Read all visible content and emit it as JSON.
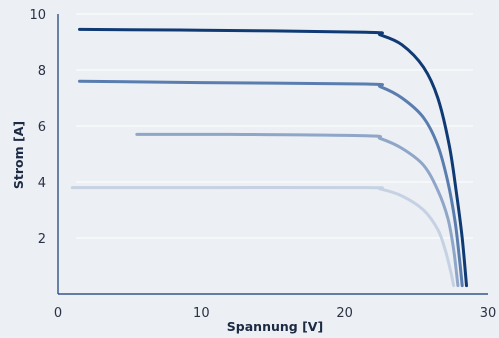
{
  "chart_data": {
    "type": "line",
    "xlabel": "Spannung [V]",
    "ylabel": "Strom [A]",
    "xlim": [
      0,
      30
    ],
    "ylim": [
      0,
      10
    ],
    "x_ticks": [
      0,
      10,
      20,
      30
    ],
    "y_ticks": [
      2,
      4,
      6,
      8,
      10
    ],
    "grid": "horizontal",
    "series": [
      {
        "color": "#0f3a74",
        "points": [
          [
            1.5,
            9.45
          ],
          [
            10,
            9.42
          ],
          [
            21.5,
            9.35
          ],
          [
            22.5,
            9.25
          ],
          [
            24,
            8.9
          ],
          [
            25.5,
            8.1
          ],
          [
            26.5,
            7.0
          ],
          [
            27.3,
            5.3
          ],
          [
            27.8,
            3.6
          ],
          [
            28.2,
            2.0
          ],
          [
            28.5,
            0.3
          ]
        ]
      },
      {
        "color": "#5a7db0",
        "points": [
          [
            1.5,
            7.6
          ],
          [
            10,
            7.55
          ],
          [
            21.5,
            7.5
          ],
          [
            22.5,
            7.4
          ],
          [
            24,
            7.0
          ],
          [
            25.5,
            6.3
          ],
          [
            26.5,
            5.3
          ],
          [
            27.2,
            4.0
          ],
          [
            27.7,
            2.6
          ],
          [
            28.0,
            1.3
          ],
          [
            28.2,
            0.3
          ]
        ]
      },
      {
        "color": "#8fa6c8",
        "points": [
          [
            5.5,
            5.7
          ],
          [
            12,
            5.7
          ],
          [
            21.5,
            5.65
          ],
          [
            22.5,
            5.55
          ],
          [
            24,
            5.2
          ],
          [
            25.5,
            4.6
          ],
          [
            26.5,
            3.7
          ],
          [
            27.2,
            2.7
          ],
          [
            27.6,
            1.6
          ],
          [
            27.9,
            0.3
          ]
        ]
      },
      {
        "color": "#c6d2e3",
        "points": [
          [
            1.0,
            3.8
          ],
          [
            10,
            3.8
          ],
          [
            21.5,
            3.8
          ],
          [
            22.5,
            3.75
          ],
          [
            24,
            3.5
          ],
          [
            25.5,
            3.0
          ],
          [
            26.5,
            2.3
          ],
          [
            27.0,
            1.6
          ],
          [
            27.4,
            0.8
          ],
          [
            27.6,
            0.3
          ]
        ]
      }
    ]
  }
}
